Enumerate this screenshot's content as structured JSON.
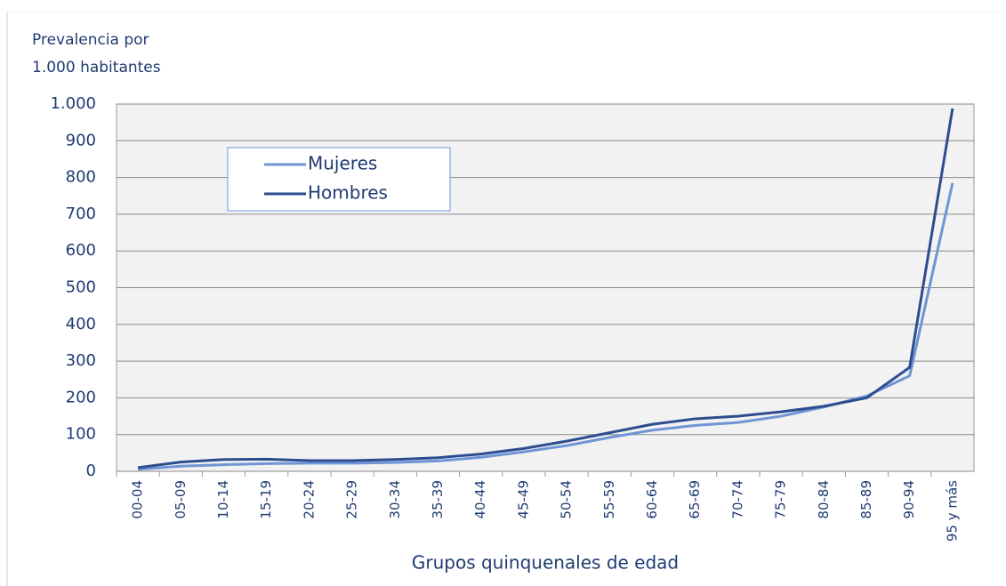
{
  "chart_data": {
    "type": "line",
    "y_label": [
      "Prevalencia por",
      "1.000 habitantes"
    ],
    "x_label": "Grupos quinquenales de edad",
    "categories": [
      "00-04",
      "05-09",
      "10-14",
      "15-19",
      "20-24",
      "25-29",
      "30-34",
      "35-39",
      "40-44",
      "45-49",
      "50-54",
      "55-59",
      "60-64",
      "65-69",
      "70-74",
      "75-79",
      "80-84",
      "85-89",
      "90-94",
      "95 y más"
    ],
    "series": [
      {
        "name": "Mujeres",
        "color": "#6f95d6",
        "values": [
          5,
          14,
          18,
          21,
          22,
          22,
          24,
          28,
          38,
          53,
          70,
          92,
          112,
          125,
          133,
          150,
          175,
          205,
          260,
          785
        ]
      },
      {
        "name": "Hombres",
        "color": "#2e4d8f",
        "values": [
          10,
          25,
          32,
          33,
          29,
          29,
          32,
          37,
          47,
          62,
          82,
          105,
          128,
          143,
          150,
          162,
          177,
          200,
          283,
          988
        ]
      }
    ],
    "ylim": [
      0,
      1000
    ],
    "yticks": [
      0,
      100,
      200,
      300,
      400,
      500,
      600,
      700,
      800,
      900,
      {
        "value": 1000,
        "label": "1.000"
      }
    ],
    "grid": true,
    "legend": "upper-left"
  }
}
